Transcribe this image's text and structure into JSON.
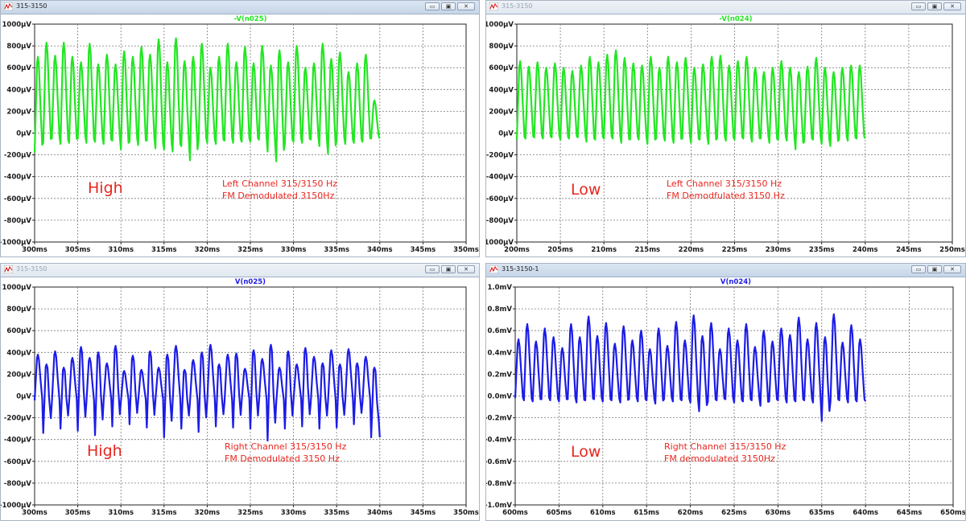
{
  "windows": [
    {
      "title": "315-3150",
      "active": true,
      "buttons": {
        "minimize": "▭",
        "restore": "▣",
        "close": "✕"
      },
      "chart_data": {
        "type": "line",
        "title": "-V(n025)",
        "trace_color": "#22e622",
        "x_ticks": [
          "300ms",
          "305ms",
          "310ms",
          "315ms",
          "320ms",
          "325ms",
          "330ms",
          "335ms",
          "340ms",
          "345ms",
          "350ms"
        ],
        "y_ticks": [
          "1000µV",
          "800µV",
          "600µV",
          "400µV",
          "200µV",
          "0µV",
          "-200µV",
          "-400µV",
          "-600µV",
          "-800µV",
          "-1000µV"
        ],
        "xlim": [
          300,
          350
        ],
        "ylim": [
          -1000,
          1000
        ],
        "grid": true,
        "series": [
          {
            "x_start": 300,
            "x_period": 1.0,
            "peaks": [
              700,
              830,
              710,
              830,
              700,
              650,
              820,
              630,
              720,
              630,
              750,
              700,
              790,
              720,
              860,
              650,
              870,
              660,
              700,
              820,
              600,
              700,
              820,
              650,
              790,
              640,
              800,
              620,
              760,
              650,
              800,
              600,
              640,
              820,
              680,
              740,
              560,
              640,
              720,
              300
            ],
            "troughs": [
              -180,
              -90,
              -50,
              -100,
              -90,
              -50,
              -90,
              -80,
              -100,
              -70,
              -150,
              -80,
              -110,
              -70,
              -140,
              -150,
              -170,
              -120,
              -250,
              -70,
              -90,
              -100,
              -70,
              -90,
              -80,
              -80,
              -60,
              -170,
              -260,
              -100,
              -80,
              -90,
              -60,
              -120,
              -190,
              -70,
              -100,
              -90,
              -80,
              -50
            ]
          }
        ]
      },
      "annotations": {
        "big": "High",
        "line1": "Left Channel 315/3150 Hz",
        "line2": "FM Demodulated 3150Hz"
      }
    },
    {
      "title": "315-3150",
      "active": false,
      "buttons": {
        "minimize": "▭",
        "restore": "▣",
        "close": "✕"
      },
      "chart_data": {
        "type": "line",
        "title": "-V(n024)",
        "trace_color": "#22e622",
        "x_ticks": [
          "200ms",
          "205ms",
          "210ms",
          "215ms",
          "220ms",
          "225ms",
          "230ms",
          "235ms",
          "240ms",
          "245ms",
          "250ms"
        ],
        "y_ticks": [
          "1000µV",
          "800µV",
          "600µV",
          "400µV",
          "200µV",
          "0µV",
          "-200µV",
          "-400µV",
          "-600µV",
          "-800µV",
          "-1000µV"
        ],
        "xlim": [
          200,
          250
        ],
        "ylim": [
          -1000,
          1000
        ],
        "grid": true,
        "series": [
          {
            "x_start": 200,
            "x_period": 1.0,
            "peaks": [
              660,
              610,
              650,
              600,
              640,
              600,
              570,
              620,
              700,
              650,
              720,
              760,
              690,
              640,
              620,
              700,
              600,
              700,
              650,
              690,
              600,
              630,
              700,
              710,
              620,
              660,
              700,
              600,
              560,
              600,
              660,
              600,
              560,
              610,
              690,
              600,
              560,
              600,
              620,
              620
            ],
            "troughs": [
              -60,
              -50,
              -40,
              -50,
              -40,
              -60,
              -50,
              -40,
              -80,
              -60,
              -50,
              -50,
              -90,
              -60,
              -60,
              -100,
              -50,
              -70,
              -90,
              -50,
              -90,
              -60,
              -100,
              -50,
              -70,
              -60,
              -50,
              -80,
              -50,
              -90,
              -60,
              -70,
              -150,
              -80,
              -60,
              -100,
              -120,
              -60,
              -70,
              -50
            ]
          }
        ]
      },
      "annotations": {
        "big": "Low",
        "line1": "Left Channel 315/3150 Hz",
        "line2": "FM Demodfulated 3150 Hz"
      }
    },
    {
      "title": "315-3150",
      "active": false,
      "buttons": {
        "minimize": "▭",
        "restore": "▣",
        "close": "✕"
      },
      "chart_data": {
        "type": "line",
        "title": "V(n025)",
        "trace_color": "#1c1ce6",
        "x_ticks": [
          "300ms",
          "305ms",
          "310ms",
          "315ms",
          "320ms",
          "325ms",
          "330ms",
          "335ms",
          "340ms",
          "345ms",
          "350ms"
        ],
        "y_ticks": [
          "1000µV",
          "800µV",
          "600µV",
          "400µV",
          "200µV",
          "0µV",
          "-200µV",
          "-400µV",
          "-600µV",
          "-800µV",
          "-1000µV"
        ],
        "xlim": [
          300,
          350
        ],
        "ylim": [
          -1000,
          1000
        ],
        "grid": true,
        "series": [
          {
            "x_start": 300,
            "x_period": 1.0,
            "peaks": [
              380,
              290,
              410,
              260,
              350,
              450,
              350,
              400,
              300,
              460,
              230,
              370,
              240,
              410,
              260,
              380,
              460,
              240,
              330,
              400,
              470,
              290,
              380,
              390,
              250,
              420,
              340,
              470,
              260,
              410,
              290,
              440,
              360,
              300,
              420,
              290,
              430,
              300,
              360,
              260
            ],
            "troughs": [
              -40,
              -340,
              -60,
              -300,
              -50,
              -320,
              -60,
              -360,
              -40,
              -280,
              -50,
              -260,
              -50,
              -290,
              -40,
              -380,
              -50,
              -300,
              -60,
              -330,
              -50,
              -280,
              -60,
              -290,
              -40,
              -300,
              -50,
              -410,
              -60,
              -300,
              -40,
              -280,
              -60,
              -300,
              -50,
              -290,
              -40,
              -260,
              -50,
              -380
            ]
          }
        ]
      },
      "annotations": {
        "big": "High",
        "line1": "Right Channel 315/3150 Hz",
        "line2": "FM Demodulated 3150 Hz"
      }
    },
    {
      "title": "315-3150-1",
      "active": true,
      "buttons": {
        "minimize": "▭",
        "restore": "▣",
        "close": "✕"
      },
      "chart_data": {
        "type": "line",
        "title": "V(n024)",
        "trace_color": "#1c1ce6",
        "x_ticks": [
          "600ms",
          "605ms",
          "610ms",
          "615ms",
          "620ms",
          "625ms",
          "630ms",
          "635ms",
          "640ms",
          "645ms",
          "650ms"
        ],
        "y_ticks": [
          "1.0mV",
          "0.8mV",
          "0.6mV",
          "0.4mV",
          "0.2mV",
          "0.0mV",
          "-0.2mV",
          "-0.4mV",
          "-0.6mV",
          "-0.8mV",
          "-1.0mV"
        ],
        "xlim": [
          600,
          650
        ],
        "ylim": [
          -1.0,
          1.0
        ],
        "grid": true,
        "series": [
          {
            "x_start": 600,
            "x_period": 1.0,
            "peaks": [
              0.52,
              0.66,
              0.5,
              0.62,
              0.54,
              0.44,
              0.66,
              0.54,
              0.73,
              0.55,
              0.67,
              0.48,
              0.64,
              0.51,
              0.6,
              0.43,
              0.62,
              0.46,
              0.68,
              0.51,
              0.74,
              0.55,
              0.67,
              0.43,
              0.62,
              0.51,
              0.66,
              0.45,
              0.6,
              0.5,
              0.62,
              0.56,
              0.72,
              0.52,
              0.67,
              0.54,
              0.75,
              0.49,
              0.65,
              0.52
            ],
            "troughs": [
              -0.02,
              -0.04,
              -0.05,
              -0.03,
              -0.04,
              -0.05,
              -0.03,
              -0.06,
              -0.04,
              -0.03,
              -0.05,
              -0.04,
              -0.06,
              -0.03,
              -0.05,
              -0.04,
              -0.07,
              -0.03,
              -0.05,
              -0.04,
              -0.06,
              -0.14,
              -0.05,
              -0.04,
              -0.03,
              -0.06,
              -0.05,
              -0.04,
              -0.09,
              -0.05,
              -0.04,
              -0.06,
              -0.05,
              -0.04,
              -0.06,
              -0.23,
              -0.05,
              -0.04,
              -0.06,
              -0.05
            ]
          }
        ]
      },
      "annotations": {
        "big": "Low",
        "line1": "Right Channel 315/3150 Hz",
        "line2": "FM demodulated 3150Hz"
      }
    }
  ]
}
